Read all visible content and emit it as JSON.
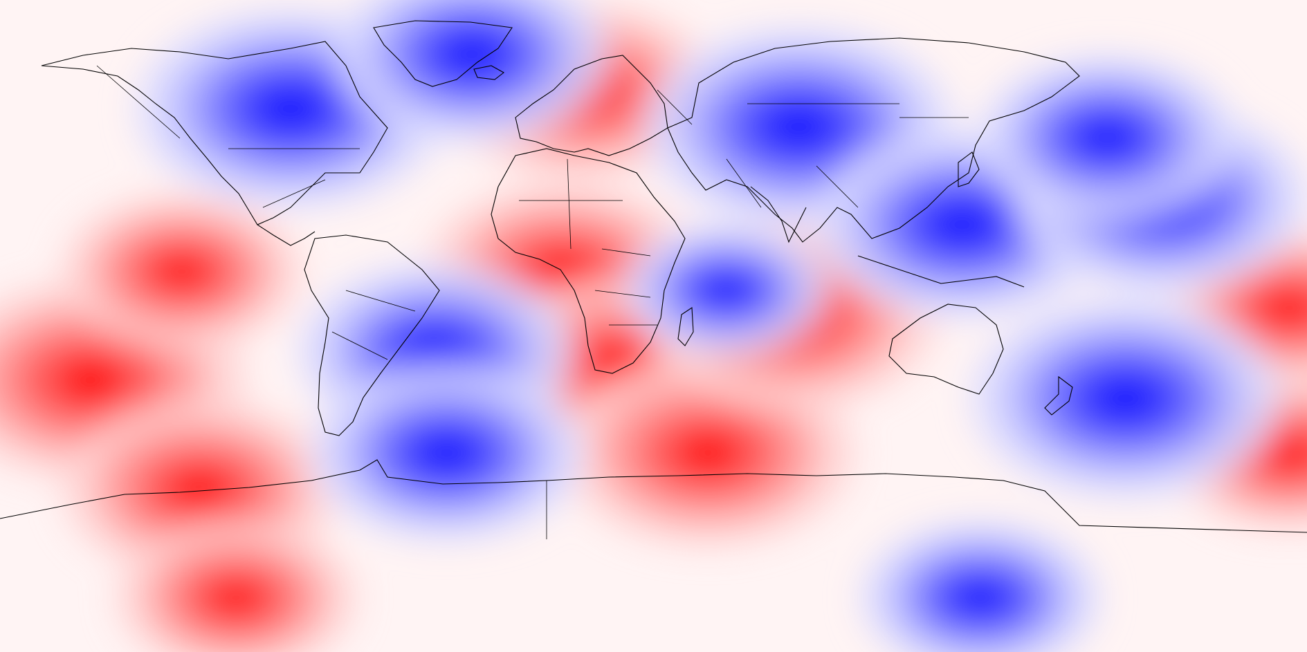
{
  "map": {
    "projection": "equirectangular",
    "extent": {
      "lon": [
        -180,
        180
      ],
      "lat": [
        -90,
        90
      ]
    },
    "colormap": [
      "#0000ff",
      "#3c3cff",
      "#7878ff",
      "#b4b4ff",
      "#dcdcff",
      "#fff8f8",
      "#ffd2d2",
      "#ff9696",
      "#ff5a5a",
      "#ff0000"
    ],
    "background_color": "#fff4f4",
    "coastline_color": "#000000",
    "anomalies": [
      {
        "sign": "positive",
        "lon": -155,
        "lat": -15,
        "strength": 1.0
      },
      {
        "sign": "positive",
        "lon": -125,
        "lat": -45,
        "strength": 0.8
      },
      {
        "sign": "positive",
        "lon": -130,
        "lat": 15,
        "strength": 0.6
      },
      {
        "sign": "positive",
        "lon": -115,
        "lat": -75,
        "strength": 0.6
      },
      {
        "sign": "positive",
        "lon": -20,
        "lat": 65,
        "strength": 0.8
      },
      {
        "sign": "positive",
        "lon": -25,
        "lat": 15,
        "strength": 0.8
      },
      {
        "sign": "positive",
        "lon": -10,
        "lat": -10,
        "strength": 0.7
      },
      {
        "sign": "positive",
        "lon": 15,
        "lat": -35,
        "strength": 0.9
      },
      {
        "sign": "positive",
        "lon": 38,
        "lat": 3,
        "strength": 0.9
      },
      {
        "sign": "positive",
        "lon": 175,
        "lat": 5,
        "strength": 0.6
      },
      {
        "sign": "positive",
        "lon": 175,
        "lat": -35,
        "strength": 0.6
      },
      {
        "sign": "negative",
        "lon": -100,
        "lat": 60,
        "strength": 1.0
      },
      {
        "sign": "negative",
        "lon": -50,
        "lat": 75,
        "strength": 0.8
      },
      {
        "sign": "negative",
        "lon": 40,
        "lat": 55,
        "strength": 1.0
      },
      {
        "sign": "negative",
        "lon": 85,
        "lat": 28,
        "strength": 0.9
      },
      {
        "sign": "negative",
        "lon": 140,
        "lat": 35,
        "strength": 0.9
      },
      {
        "sign": "negative",
        "lon": 125,
        "lat": 52,
        "strength": 0.7
      },
      {
        "sign": "negative",
        "lon": 130,
        "lat": -20,
        "strength": 1.0
      },
      {
        "sign": "negative",
        "lon": -60,
        "lat": -7,
        "strength": 0.8
      },
      {
        "sign": "negative",
        "lon": -57,
        "lat": -35,
        "strength": 0.8
      },
      {
        "sign": "negative",
        "lon": 90,
        "lat": -75,
        "strength": 0.6
      },
      {
        "sign": "negative",
        "lon": 20,
        "lat": 10,
        "strength": 0.4
      }
    ]
  }
}
